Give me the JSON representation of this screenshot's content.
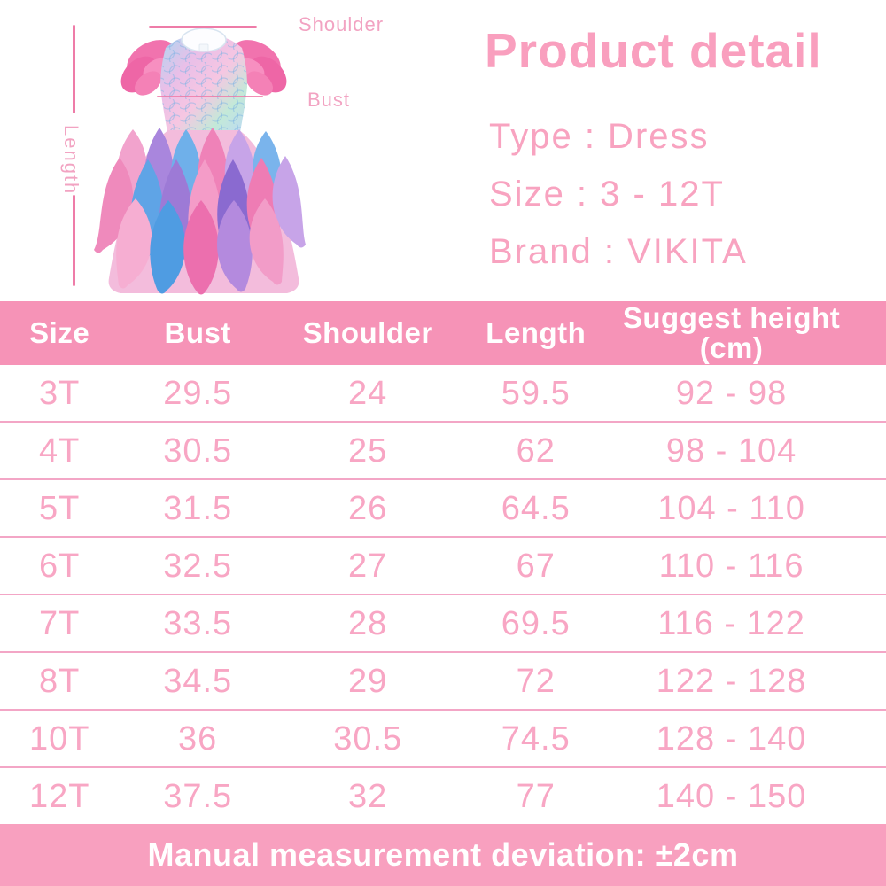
{
  "illustration": {
    "labels": {
      "shoulder": "Shoulder",
      "bust": "Bust",
      "length": "Length"
    }
  },
  "product_detail": {
    "title": "Product detail",
    "lines": [
      "Type : Dress",
      "Size : 3 - 12T",
      "Brand : VIKITA"
    ]
  },
  "size_chart": {
    "columns": [
      "Size",
      "Bust",
      "Shoulder",
      "Length",
      "Suggest height\n(cm)"
    ],
    "rows": [
      [
        "3T",
        "29.5",
        "24",
        "59.5",
        "92 - 98"
      ],
      [
        "4T",
        "30.5",
        "25",
        "62",
        "98 - 104"
      ],
      [
        "5T",
        "31.5",
        "26",
        "64.5",
        "104 - 110"
      ],
      [
        "6T",
        "32.5",
        "27",
        "67",
        "110 - 116"
      ],
      [
        "7T",
        "33.5",
        "28",
        "69.5",
        "116 - 122"
      ],
      [
        "8T",
        "34.5",
        "29",
        "72",
        "122 - 128"
      ],
      [
        "10T",
        "36",
        "30.5",
        "74.5",
        "128 - 140"
      ],
      [
        "12T",
        "37.5",
        "32",
        "77",
        "140 - 150"
      ]
    ]
  },
  "footer": {
    "note": "Manual measurement deviation: ±2cm"
  },
  "colors": {
    "header_bg": "#f693b7",
    "header_text": "#ffffff",
    "footer_bg": "#f8a0bf",
    "footer_text": "#ffffff",
    "row_text": "#f8a6c4",
    "divider": "#f3a6c6",
    "title_text": "#f99fbe",
    "body_text": "#f8a3c0",
    "label_text": "#f2a3c2",
    "line_color": "#ee7ca8"
  }
}
